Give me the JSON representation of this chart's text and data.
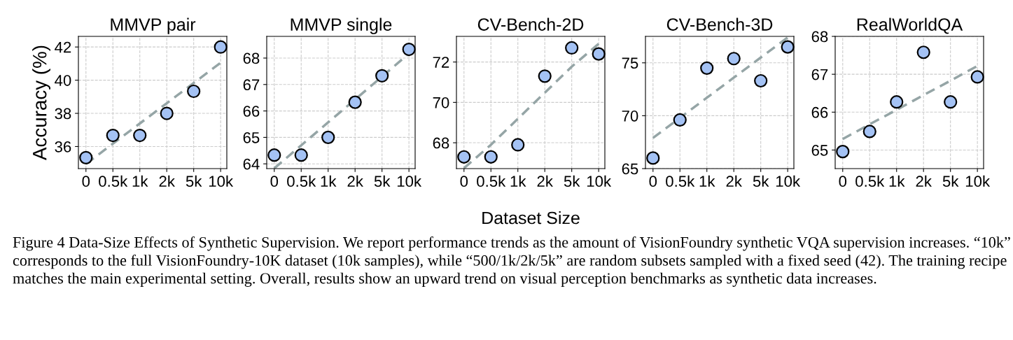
{
  "chart_data": [
    {
      "type": "scatter",
      "title": "MMVP pair",
      "ylabel": "Accuracy (%)",
      "categories": [
        "0",
        "0.5k",
        "1k",
        "2k",
        "5k",
        "10k"
      ],
      "ylim": [
        34.67,
        42.64
      ],
      "yticks": [
        36,
        38,
        40,
        42
      ],
      "grid": true,
      "series": [
        {
          "color": "#a4c2f4",
          "marker": "circle",
          "values": [
            35.33,
            36.67,
            36.67,
            38.0,
            39.33,
            42.0
          ]
        },
        {
          "type": "line",
          "color": "#95a5a6",
          "line_style": "dashed",
          "values": [
            34.95,
            36.17,
            37.39,
            38.61,
            39.83,
            41.05
          ]
        }
      ],
      "annotations": [
        "Figure 4 Data-Size Effects of Synthetic Supervision. We report performance trends as the amount of VisionFoundry synthetic VQA supervision increases. “10k” corresponds to the full VisionFoundry-10K dataset (10k samples), while “500/1k/2k/5k” are random subsets sampled with a fixed seed (42). The training recipe matches the main experimental setting. Overall, results show an upward trend on visual perception benchmarks as synthetic data increases."
      ]
    },
    {
      "type": "scatter",
      "title": "MMVP single",
      "categories": [
        "0",
        "0.5k",
        "1k",
        "2k",
        "5k",
        "10k"
      ],
      "ylim": [
        63.82,
        68.82
      ],
      "yticks": [
        64,
        65,
        66,
        67,
        68
      ],
      "grid": true,
      "series": [
        {
          "color": "#a4c2f4",
          "marker": "circle",
          "values": [
            64.33,
            64.33,
            65.0,
            66.33,
            67.33,
            68.33
          ]
        },
        {
          "type": "line",
          "color": "#95a5a6",
          "line_style": "dashed",
          "values": [
            63.83,
            64.7,
            65.57,
            66.43,
            67.3,
            68.17
          ]
        }
      ]
    },
    {
      "type": "scatter",
      "title": "CV-Bench-2D",
      "xlabel": "Dataset Size",
      "categories": [
        "0",
        "0.5k",
        "1k",
        "2k",
        "5k",
        "10k"
      ],
      "ylim": [
        66.72,
        73.27
      ],
      "yticks": [
        68,
        70,
        72
      ],
      "grid": true,
      "series": [
        {
          "color": "#a4c2f4",
          "marker": "circle",
          "values": [
            67.3,
            67.3,
            67.9,
            71.3,
            72.7,
            72.4
          ]
        },
        {
          "type": "line",
          "color": "#95a5a6",
          "line_style": "dashed",
          "values": [
            66.74,
            67.9,
            69.19,
            70.48,
            71.77,
            72.9
          ]
        }
      ]
    },
    {
      "type": "scatter",
      "title": "CV-Bench-3D",
      "categories": [
        "0",
        "0.5k",
        "1k",
        "2k",
        "5k",
        "10k"
      ],
      "ylim": [
        65,
        77.5
      ],
      "yticks": [
        65,
        70,
        75
      ],
      "grid": true,
      "series": [
        {
          "color": "#a4c2f4",
          "marker": "circle",
          "values": [
            66.0,
            69.6,
            74.5,
            75.4,
            73.3,
            76.5
          ]
        },
        {
          "type": "line",
          "color": "#95a5a6",
          "line_style": "dashed",
          "values": [
            67.9,
            69.8,
            71.7,
            73.6,
            75.5,
            77.4
          ]
        }
      ]
    },
    {
      "type": "scatter",
      "title": "RealWorldQA",
      "categories": [
        "0",
        "0.5k",
        "1k",
        "2k",
        "5k",
        "10k"
      ],
      "ylim": [
        64.51,
        68.0
      ],
      "yticks": [
        65,
        66,
        67,
        68
      ],
      "grid": true,
      "series": [
        {
          "color": "#a4c2f4",
          "marker": "circle",
          "values": [
            64.96,
            65.49,
            66.27,
            67.58,
            66.27,
            66.93
          ]
        },
        {
          "type": "line",
          "color": "#95a5a6",
          "line_style": "dashed",
          "values": [
            65.29,
            65.68,
            66.06,
            66.45,
            66.83,
            67.22
          ]
        }
      ]
    }
  ]
}
